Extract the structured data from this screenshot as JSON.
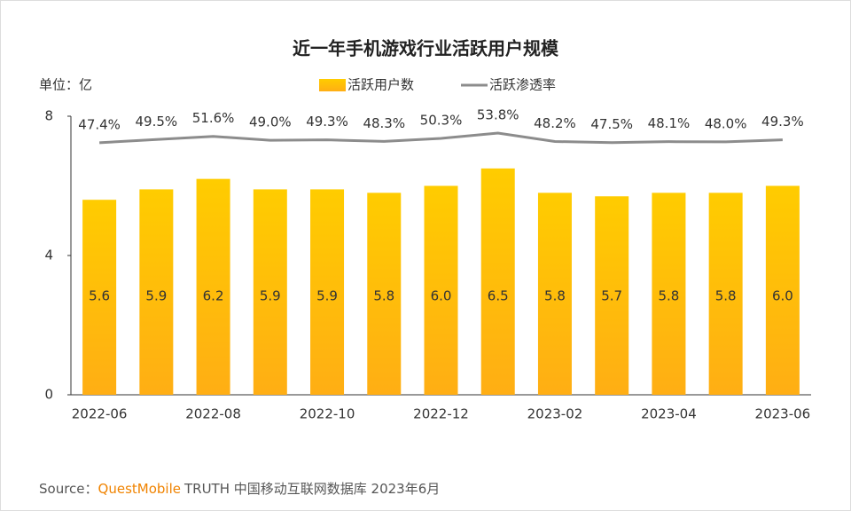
{
  "chart_data": {
    "type": "bar-line",
    "title": "近一年手机游戏行业活跃用户规模",
    "unit_label": "单位：亿",
    "categories": [
      "2022-06",
      null,
      "2022-08",
      null,
      "2022-10",
      null,
      "2022-12",
      null,
      "2023-02",
      null,
      "2023-04",
      null,
      "2023-06"
    ],
    "series": [
      {
        "name": "活跃用户数",
        "type": "bar",
        "color": "#FFC000",
        "values": [
          5.6,
          5.9,
          6.2,
          5.9,
          5.9,
          5.8,
          6.0,
          6.5,
          5.8,
          5.7,
          5.8,
          5.8,
          6.0
        ],
        "value_labels": [
          "5.6",
          "5.9",
          "6.2",
          "5.9",
          "5.9",
          "5.8",
          "6.0",
          "6.5",
          "5.8",
          "5.7",
          "5.8",
          "5.8",
          "6.0"
        ]
      },
      {
        "name": "活跃渗透率",
        "type": "line",
        "axis": "y2",
        "color": "#8c8c8c",
        "values": [
          47.4,
          49.5,
          51.6,
          49.0,
          49.3,
          48.3,
          50.3,
          53.8,
          48.2,
          47.5,
          48.1,
          48.0,
          49.3
        ],
        "value_labels": [
          "47.4%",
          "49.5%",
          "51.6%",
          "49.0%",
          "49.3%",
          "48.3%",
          "50.3%",
          "53.8%",
          "48.2%",
          "47.5%",
          "48.1%",
          "48.0%",
          "49.3%"
        ]
      }
    ],
    "ylim": [
      0,
      8
    ],
    "yticks": [
      0,
      4,
      8
    ],
    "y2lim": [
      -120,
      65
    ],
    "legend": "top",
    "source": {
      "prefix": "Source：",
      "brand": "QuestMobile",
      "text": "TRUTH 中国移动互联网数据库 2023年6月"
    }
  }
}
